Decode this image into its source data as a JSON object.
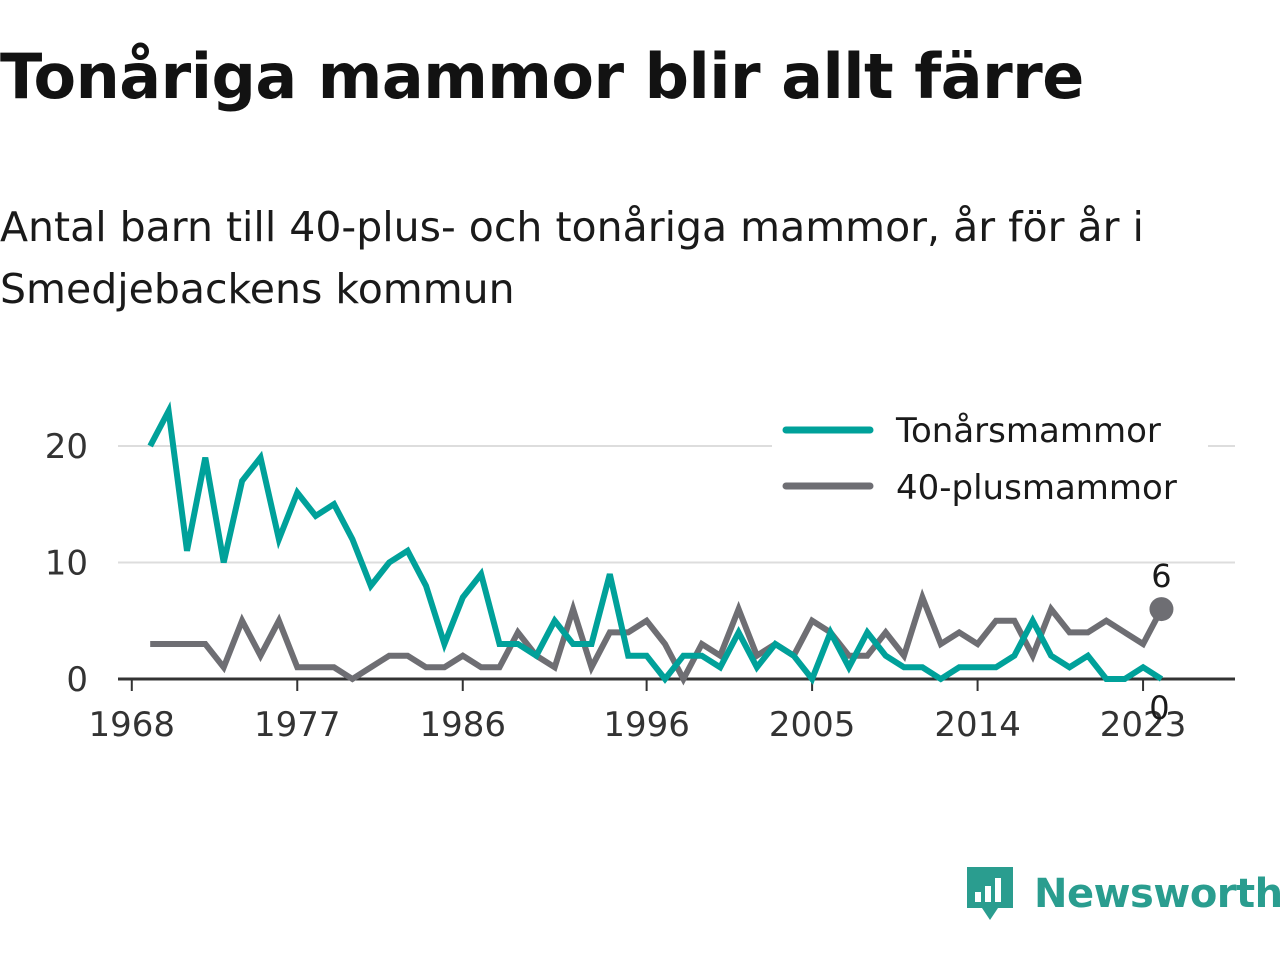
{
  "title": "Tonåriga mammor blir allt färre",
  "subtitle": "Antal barn till 40-plus- och tonåriga mammor, år för år i Smedjebackens kommun",
  "brand": {
    "name": "Newsworthy"
  },
  "colors": {
    "teal": "#00a19a",
    "gray": "#6e6e73",
    "grid": "#dddddd",
    "axis": "#333333"
  },
  "chart_data": {
    "type": "line",
    "x": [
      1969,
      1970,
      1971,
      1972,
      1973,
      1974,
      1975,
      1976,
      1977,
      1978,
      1979,
      1980,
      1981,
      1982,
      1983,
      1984,
      1985,
      1986,
      1987,
      1988,
      1989,
      1990,
      1991,
      1992,
      1993,
      1994,
      1995,
      1996,
      1997,
      1998,
      1999,
      2000,
      2001,
      2002,
      2003,
      2004,
      2005,
      2006,
      2007,
      2008,
      2009,
      2010,
      2011,
      2012,
      2013,
      2014,
      2015,
      2016,
      2017,
      2018,
      2019,
      2020,
      2021,
      2022,
      2023,
      2024
    ],
    "series": [
      {
        "name": "Tonårsmammor",
        "color": "#00a19a",
        "values": [
          20,
          23,
          11,
          19,
          10,
          17,
          19,
          12,
          16,
          14,
          15,
          12,
          8,
          10,
          11,
          8,
          3,
          7,
          9,
          3,
          3,
          2,
          5,
          3,
          3,
          9,
          2,
          2,
          0,
          2,
          2,
          1,
          4,
          1,
          3,
          2,
          0,
          4,
          1,
          4,
          2,
          1,
          1,
          0,
          1,
          1,
          1,
          2,
          5,
          2,
          1,
          2,
          0,
          0,
          1,
          0
        ],
        "end_label": "0"
      },
      {
        "name": "40-plusmammor",
        "color": "#6e6e73",
        "values": [
          3,
          3,
          3,
          3,
          1,
          5,
          2,
          5,
          1,
          1,
          1,
          0,
          1,
          2,
          2,
          1,
          1,
          2,
          1,
          1,
          4,
          2,
          1,
          6,
          1,
          4,
          4,
          5,
          3,
          0,
          3,
          2,
          6,
          2,
          3,
          2,
          5,
          4,
          2,
          2,
          4,
          2,
          7,
          3,
          4,
          3,
          5,
          5,
          2,
          6,
          4,
          4,
          5,
          4,
          3,
          6
        ],
        "end_label": "6"
      }
    ],
    "x_ticks": [
      {
        "value": 1968,
        "label": "1968"
      },
      {
        "value": 1977,
        "label": "1977"
      },
      {
        "value": 1986,
        "label": "1986"
      },
      {
        "value": 1996,
        "label": "1996"
      },
      {
        "value": 2005,
        "label": "2005"
      },
      {
        "value": 2014,
        "label": "2014"
      },
      {
        "value": 2023,
        "label": "2023"
      }
    ],
    "y_ticks": [
      {
        "value": 0,
        "label": "0"
      },
      {
        "value": 10,
        "label": "10"
      },
      {
        "value": 20,
        "label": "20"
      }
    ],
    "xlim": [
      1967.25,
      2028
    ],
    "ylim": [
      0,
      23
    ],
    "grid": true,
    "legend": "top-right"
  }
}
